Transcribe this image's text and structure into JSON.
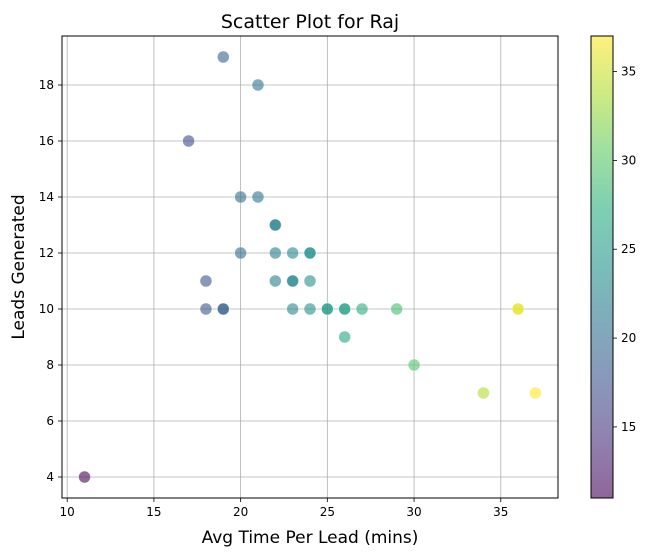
{
  "chart_data": {
    "type": "scatter",
    "title": "Scatter Plot for Raj",
    "xlabel": "Avg Time Per Lead (mins)",
    "ylabel": "Leads Generated",
    "xlim": [
      9.7,
      38.3
    ],
    "ylim": [
      3.25,
      19.75
    ],
    "xticks": [
      10,
      15,
      20,
      25,
      30,
      35
    ],
    "yticks": [
      4,
      6,
      8,
      10,
      12,
      14,
      16,
      18
    ],
    "grid": true,
    "marker_alpha": 0.6,
    "colormap": "viridis",
    "colorbar": {
      "range": [
        11,
        37
      ],
      "ticks": [
        15,
        20,
        25,
        30,
        35
      ]
    },
    "points": [
      {
        "x": 11,
        "y": 4
      },
      {
        "x": 17,
        "y": 16
      },
      {
        "x": 18,
        "y": 11
      },
      {
        "x": 18,
        "y": 10
      },
      {
        "x": 19,
        "y": 19
      },
      {
        "x": 19,
        "y": 10
      },
      {
        "x": 19,
        "y": 10
      },
      {
        "x": 20,
        "y": 14
      },
      {
        "x": 20,
        "y": 12
      },
      {
        "x": 21,
        "y": 18
      },
      {
        "x": 21,
        "y": 14
      },
      {
        "x": 22,
        "y": 13
      },
      {
        "x": 22,
        "y": 13
      },
      {
        "x": 22,
        "y": 12
      },
      {
        "x": 22,
        "y": 11
      },
      {
        "x": 23,
        "y": 12
      },
      {
        "x": 23,
        "y": 11
      },
      {
        "x": 23,
        "y": 11
      },
      {
        "x": 23,
        "y": 10
      },
      {
        "x": 24,
        "y": 12
      },
      {
        "x": 24,
        "y": 12
      },
      {
        "x": 24,
        "y": 11
      },
      {
        "x": 24,
        "y": 10
      },
      {
        "x": 25,
        "y": 10
      },
      {
        "x": 25,
        "y": 10
      },
      {
        "x": 26,
        "y": 10
      },
      {
        "x": 26,
        "y": 10
      },
      {
        "x": 26,
        "y": 9
      },
      {
        "x": 27,
        "y": 10
      },
      {
        "x": 29,
        "y": 10
      },
      {
        "x": 30,
        "y": 8
      },
      {
        "x": 34,
        "y": 7
      },
      {
        "x": 36,
        "y": 10
      },
      {
        "x": 36,
        "y": 10
      },
      {
        "x": 37,
        "y": 7
      }
    ]
  }
}
